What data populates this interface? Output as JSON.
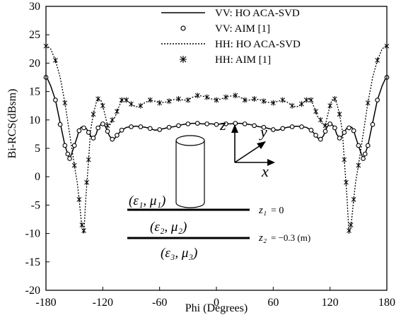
{
  "chart_data": {
    "type": "line",
    "title": "",
    "xlabel": "Phi (Degrees)",
    "ylabel": "Bi-RCS(dBsm)",
    "xlim": [
      -180,
      180
    ],
    "ylim": [
      -20,
      30
    ],
    "xticks": [
      -180,
      -120,
      -60,
      0,
      60,
      120,
      180
    ],
    "yticks": [
      -20,
      -15,
      -10,
      -5,
      0,
      5,
      10,
      15,
      20,
      25,
      30
    ],
    "grid": false,
    "legend_position": "top-right",
    "series": [
      {
        "name": "VV: HO ACA-SVD",
        "style": "solid-line",
        "x": [
          -180,
          -175,
          -170,
          -165,
          -160,
          -157,
          -155,
          -153,
          -150,
          -147,
          -145,
          -143,
          -140,
          -137,
          -135,
          -132,
          -130,
          -127,
          -125,
          -122,
          -120,
          -117,
          -115,
          -113,
          -110,
          -107,
          -105,
          -100,
          -95,
          -90,
          -85,
          -80,
          -75,
          -70,
          -65,
          -60,
          -55,
          -50,
          -45,
          -40,
          -35,
          -30,
          -25,
          -20,
          -15,
          -10,
          -5,
          0,
          5,
          10,
          15,
          20,
          25,
          30,
          35,
          40,
          45,
          50,
          55,
          60,
          65,
          70,
          75,
          80,
          85,
          90,
          95,
          100,
          105,
          107,
          110,
          113,
          115,
          117,
          120,
          122,
          125,
          127,
          130,
          132,
          135,
          137,
          140,
          143,
          145,
          147,
          150,
          153,
          155,
          157,
          160,
          165,
          170,
          175,
          180
        ],
        "y": [
          17.8,
          16,
          13.5,
          9.5,
          5.5,
          4,
          3.2,
          4,
          5.5,
          7,
          8.2,
          8.7,
          8.8,
          8.4,
          7.8,
          7,
          6.8,
          7.5,
          8.6,
          9.2,
          9.3,
          8.8,
          8,
          7.2,
          6.6,
          6.8,
          7.3,
          8.2,
          8.7,
          8.8,
          8.9,
          8.8,
          8.7,
          8.5,
          8.2,
          8.3,
          8.5,
          8.7,
          8.8,
          9,
          9.2,
          9.3,
          9.4,
          9.4,
          9.3,
          9.3,
          9.3,
          9.2,
          9.3,
          9.3,
          9.3,
          9.4,
          9.4,
          9.3,
          9.2,
          9,
          8.8,
          8.7,
          8.5,
          8.3,
          8.2,
          8.5,
          8.7,
          8.8,
          8.9,
          8.8,
          8.7,
          8.2,
          7.3,
          6.8,
          6.6,
          7.2,
          8,
          8.8,
          9.3,
          9.2,
          8.6,
          7.5,
          6.8,
          7,
          7.8,
          8.4,
          8.8,
          8.7,
          8.2,
          7,
          5.5,
          4,
          3.2,
          4,
          5.5,
          9.5,
          13.5,
          16,
          17.8
        ]
      },
      {
        "name": "VV: AIM [1]",
        "style": "open-circle",
        "x": [
          -180,
          -170,
          -165,
          -160,
          -157,
          -155,
          -150,
          -145,
          -140,
          -135,
          -130,
          -125,
          -120,
          -115,
          -110,
          -105,
          -100,
          -90,
          -80,
          -70,
          -60,
          -50,
          -40,
          -30,
          -20,
          -10,
          0,
          10,
          20,
          30,
          40,
          50,
          60,
          70,
          80,
          90,
          100,
          105,
          110,
          115,
          120,
          125,
          130,
          135,
          140,
          145,
          150,
          155,
          157,
          160,
          165,
          170,
          180
        ],
        "y": [
          17.5,
          13.5,
          9.2,
          5.5,
          4,
          3.2,
          5.5,
          8.1,
          8.6,
          7.8,
          6.8,
          8.6,
          9.3,
          8,
          6.6,
          7.3,
          8.2,
          8.8,
          8.8,
          8.5,
          8.3,
          8.7,
          9,
          9.3,
          9.4,
          9.3,
          9.2,
          9.3,
          9.4,
          9.3,
          9,
          8.7,
          8.3,
          8.5,
          8.8,
          8.8,
          8.2,
          7.3,
          6.6,
          8,
          9.3,
          8.6,
          6.8,
          7.8,
          8.6,
          8.1,
          5.5,
          3.2,
          4,
          5.5,
          9.2,
          13.5,
          17.5
        ]
      },
      {
        "name": "HH: HO ACA-SVD",
        "style": "dotted-line",
        "x": [
          -180,
          -175,
          -170,
          -165,
          -160,
          -155,
          -150,
          -147,
          -145,
          -142,
          -140,
          -138,
          -135,
          -133,
          -130,
          -127,
          -125,
          -122,
          -120,
          -117,
          -115,
          -112,
          -110,
          -107,
          -105,
          -100,
          -97,
          -95,
          -90,
          -85,
          -80,
          -75,
          -70,
          -65,
          -60,
          -55,
          -50,
          -45,
          -40,
          -35,
          -30,
          -25,
          -20,
          -15,
          -10,
          -5,
          0,
          5,
          10,
          15,
          20,
          25,
          30,
          35,
          40,
          45,
          50,
          55,
          60,
          65,
          70,
          75,
          80,
          85,
          90,
          95,
          97,
          100,
          105,
          107,
          110,
          112,
          115,
          117,
          120,
          122,
          125,
          127,
          130,
          133,
          135,
          138,
          140,
          142,
          145,
          147,
          150,
          155,
          160,
          165,
          170,
          175,
          180
        ],
        "y": [
          23.2,
          22.5,
          20.5,
          17.5,
          13,
          7.5,
          2,
          -1,
          -4,
          -9,
          -10,
          -4,
          3,
          8,
          11,
          13,
          13.7,
          13.5,
          12.5,
          10.5,
          9,
          9.2,
          10,
          10.5,
          11.5,
          13.5,
          13.7,
          13.5,
          12.8,
          12.3,
          12.5,
          13.1,
          13.5,
          13.3,
          13,
          13.1,
          13.3,
          13.6,
          13.7,
          13.5,
          13.5,
          14,
          14.3,
          14.2,
          14,
          13.7,
          13.5,
          13.7,
          14,
          14.2,
          14.3,
          14,
          13.5,
          13.5,
          13.7,
          13.6,
          13.3,
          13.1,
          13,
          13.3,
          13.5,
          13.1,
          12.5,
          12.3,
          12.8,
          13.5,
          13.7,
          13.5,
          11.5,
          10.5,
          10,
          9.2,
          9,
          10.5,
          12.5,
          13.5,
          13.7,
          13,
          11,
          8,
          3,
          -4,
          -10,
          -9,
          -4,
          -1,
          2,
          7.5,
          13,
          17.5,
          20.5,
          22.5,
          23.2
        ]
      },
      {
        "name": "HH: AIM [1]",
        "style": "asterisk",
        "x": [
          -180,
          -170,
          -160,
          -150,
          -145,
          -142,
          -140,
          -137,
          -135,
          -130,
          -125,
          -120,
          -115,
          -110,
          -105,
          -100,
          -95,
          -90,
          -80,
          -70,
          -60,
          -50,
          -40,
          -30,
          -20,
          -10,
          0,
          10,
          20,
          30,
          40,
          50,
          60,
          70,
          80,
          90,
          95,
          100,
          105,
          110,
          115,
          120,
          125,
          130,
          135,
          137,
          140,
          142,
          145,
          150,
          160,
          170,
          180
        ],
        "y": [
          23,
          20.5,
          13,
          2,
          -4,
          -8.5,
          -9.5,
          -1,
          3,
          11,
          13.7,
          12.5,
          9,
          10,
          11.5,
          13.5,
          13.5,
          12.8,
          12.5,
          13.5,
          13,
          13.3,
          13.7,
          13.5,
          14.3,
          14,
          13.5,
          14,
          14.3,
          13.5,
          13.7,
          13.3,
          13,
          13.5,
          12.5,
          12.8,
          13.5,
          13.5,
          11.5,
          10,
          9,
          12.5,
          13.7,
          11,
          3,
          -1,
          -9.5,
          -8.5,
          -4,
          2,
          13,
          20.5,
          23
        ]
      }
    ]
  },
  "legend": {
    "items": [
      {
        "label": "VV: HO ACA-SVD"
      },
      {
        "label": "VV: AIM [1]"
      },
      {
        "label": "HH: HO ACA-SVD"
      },
      {
        "label": "HH: AIM [1]"
      }
    ]
  },
  "inset": {
    "axes": {
      "z": "z",
      "y": "y",
      "x": "x"
    },
    "layers": {
      "layer1": "(ε₁, μ₁)",
      "layer2": "(ε₂, μ₂)",
      "layer3": "(ε₃, μ₃)"
    },
    "interfaces": {
      "z1_symbol": "z₁",
      "z1_value": "= 0",
      "z2_symbol": "z₂",
      "z2_value": "= −0.3 (m)"
    }
  }
}
